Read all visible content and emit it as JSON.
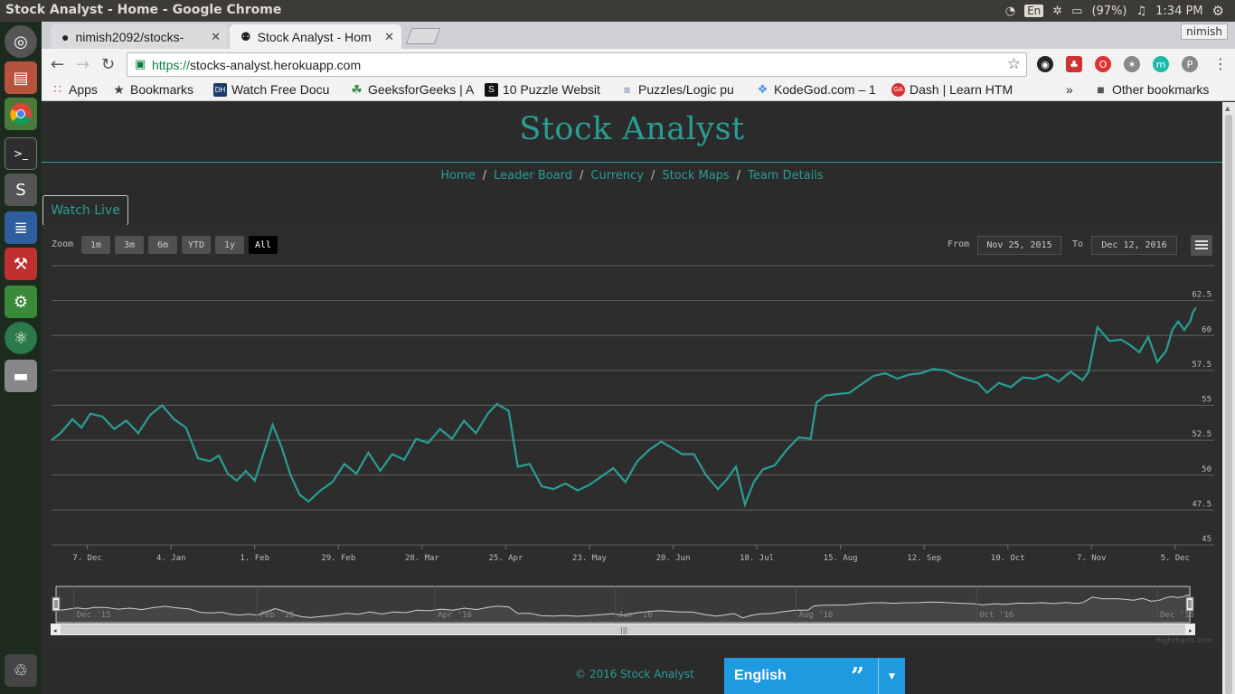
{
  "os": {
    "window_title": "Stock Analyst - Home - Google Chrome",
    "lang_indicator": "En",
    "battery": "(97%)",
    "time": "1:34 PM"
  },
  "browser": {
    "tabs": [
      {
        "label": "nimish2092/stocks-",
        "icon": "github-icon"
      },
      {
        "label": "Stock Analyst - Hom",
        "icon": "spartan-helmet-icon",
        "active": true
      }
    ],
    "profile": "nimish",
    "url_scheme": "https://",
    "url_host": "stocks-analyst.herokuapp.com",
    "bookmarks": [
      {
        "label": "Apps",
        "icon": "apps-grid-icon"
      },
      {
        "label": "Bookmarks",
        "icon": "star-icon"
      },
      {
        "label": "Watch Free Docu",
        "icon": "dh-icon",
        "color": "#1c3b6a"
      },
      {
        "label": "GeeksforGeeks | A",
        "icon": "gfg-icon",
        "color": "#2f8d46"
      },
      {
        "label": "10 Puzzle Websit",
        "icon": "s-icon",
        "color": "#111111"
      },
      {
        "label": "Puzzles/Logic pu",
        "icon": "puzzle-icon",
        "color": "#6a7fa0"
      },
      {
        "label": "KodeGod.com – 1",
        "icon": "kodegod-icon",
        "color": "#4a90e2"
      },
      {
        "label": "Dash | Learn HTM",
        "icon": "ga-icon",
        "color": "#d63131"
      }
    ],
    "bookmarks_more": "»",
    "other_bookmarks": "Other bookmarks"
  },
  "site": {
    "title": "Stock Analyst",
    "nav": [
      "Home",
      "Leader Board",
      "Currency",
      "Stock Maps",
      "Team Details"
    ],
    "nav_separator": "/",
    "watch_live": "Watch Live",
    "footer": "© 2016 Stock Analyst",
    "language": "English",
    "language_quote": "”",
    "accent_color": "#2a9d94"
  },
  "range_selector": {
    "zoom_label": "Zoom",
    "buttons": [
      "1m",
      "3m",
      "6m",
      "YTD",
      "1y",
      "All"
    ],
    "selected": "All",
    "from_label": "From",
    "from_value": "Nov 25, 2015",
    "to_label": "To",
    "to_value": "Dec 12, 2016"
  },
  "chart_data": {
    "type": "line",
    "title": "",
    "xlabel": "",
    "ylabel": "",
    "x_start": "2015-11-25",
    "x_end": "2016-12-12",
    "ylim": [
      45,
      65
    ],
    "y_ticks": [
      "45",
      "47.5",
      "50",
      "52.5",
      "55",
      "57.5",
      "60",
      "62.5"
    ],
    "x_tick_labels": [
      "7. Dec",
      "4. Jan",
      "1. Feb",
      "29. Feb",
      "28. Mar",
      "25. Apr",
      "23. May",
      "20. Jun",
      "18. Jul",
      "15. Aug",
      "12. Sep",
      "10. Oct",
      "7. Nov",
      "5. Dec"
    ],
    "x_tick_dates": [
      "2015-12-07",
      "2016-01-04",
      "2016-02-01",
      "2016-02-29",
      "2016-03-28",
      "2016-04-25",
      "2016-05-23",
      "2016-06-20",
      "2016-07-18",
      "2016-08-15",
      "2016-09-12",
      "2016-10-10",
      "2016-11-07",
      "2016-12-05"
    ],
    "grid": true,
    "line_color": "#2a9d94",
    "series": [
      {
        "points": [
          [
            "2015-11-25",
            52.5
          ],
          [
            "2015-11-28",
            53.0
          ],
          [
            "2015-12-02",
            54.0
          ],
          [
            "2015-12-05",
            53.4
          ],
          [
            "2015-12-08",
            54.4
          ],
          [
            "2015-12-12",
            54.2
          ],
          [
            "2015-12-16",
            53.3
          ],
          [
            "2015-12-20",
            53.9
          ],
          [
            "2015-12-24",
            53.0
          ],
          [
            "2015-12-28",
            54.3
          ],
          [
            "2016-01-01",
            55.0
          ],
          [
            "2016-01-05",
            54.0
          ],
          [
            "2016-01-09",
            53.4
          ],
          [
            "2016-01-13",
            51.2
          ],
          [
            "2016-01-17",
            51.0
          ],
          [
            "2016-01-20",
            51.4
          ],
          [
            "2016-01-23",
            50.1
          ],
          [
            "2016-01-26",
            49.6
          ],
          [
            "2016-01-29",
            50.3
          ],
          [
            "2016-02-01",
            49.6
          ],
          [
            "2016-02-04",
            51.6
          ],
          [
            "2016-02-07",
            53.6
          ],
          [
            "2016-02-10",
            52.0
          ],
          [
            "2016-02-13",
            50.0
          ],
          [
            "2016-02-16",
            48.6
          ],
          [
            "2016-02-19",
            48.1
          ],
          [
            "2016-02-23",
            48.9
          ],
          [
            "2016-02-27",
            49.5
          ],
          [
            "2016-03-02",
            50.8
          ],
          [
            "2016-03-06",
            50.1
          ],
          [
            "2016-03-10",
            51.6
          ],
          [
            "2016-03-14",
            50.3
          ],
          [
            "2016-03-18",
            51.5
          ],
          [
            "2016-03-22",
            51.1
          ],
          [
            "2016-03-26",
            52.6
          ],
          [
            "2016-03-30",
            52.3
          ],
          [
            "2016-04-03",
            53.3
          ],
          [
            "2016-04-07",
            52.6
          ],
          [
            "2016-04-11",
            53.9
          ],
          [
            "2016-04-15",
            53.0
          ],
          [
            "2016-04-19",
            54.4
          ],
          [
            "2016-04-22",
            55.1
          ],
          [
            "2016-04-26",
            54.6
          ],
          [
            "2016-04-29",
            50.6
          ],
          [
            "2016-05-03",
            50.8
          ],
          [
            "2016-05-07",
            49.2
          ],
          [
            "2016-05-11",
            49.0
          ],
          [
            "2016-05-15",
            49.4
          ],
          [
            "2016-05-19",
            48.9
          ],
          [
            "2016-05-23",
            49.3
          ],
          [
            "2016-05-27",
            49.9
          ],
          [
            "2016-05-31",
            50.5
          ],
          [
            "2016-06-04",
            49.5
          ],
          [
            "2016-06-08",
            51.0
          ],
          [
            "2016-06-12",
            51.8
          ],
          [
            "2016-06-16",
            52.4
          ],
          [
            "2016-06-20",
            51.9
          ],
          [
            "2016-06-23",
            51.5
          ],
          [
            "2016-06-27",
            51.5
          ],
          [
            "2016-07-01",
            50.0
          ],
          [
            "2016-07-05",
            49.0
          ],
          [
            "2016-07-08",
            49.7
          ],
          [
            "2016-07-11",
            50.6
          ],
          [
            "2016-07-14",
            47.9
          ],
          [
            "2016-07-17",
            49.5
          ],
          [
            "2016-07-20",
            50.4
          ],
          [
            "2016-07-24",
            50.7
          ],
          [
            "2016-07-28",
            51.8
          ],
          [
            "2016-08-01",
            52.7
          ],
          [
            "2016-08-05",
            52.6
          ],
          [
            "2016-08-07",
            55.2
          ],
          [
            "2016-08-10",
            55.7
          ],
          [
            "2016-08-14",
            55.8
          ],
          [
            "2016-08-18",
            55.9
          ],
          [
            "2016-08-22",
            56.5
          ],
          [
            "2016-08-26",
            57.1
          ],
          [
            "2016-08-30",
            57.3
          ],
          [
            "2016-09-03",
            56.9
          ],
          [
            "2016-09-07",
            57.2
          ],
          [
            "2016-09-11",
            57.3
          ],
          [
            "2016-09-15",
            57.6
          ],
          [
            "2016-09-19",
            57.5
          ],
          [
            "2016-09-23",
            57.1
          ],
          [
            "2016-09-27",
            56.8
          ],
          [
            "2016-09-30",
            56.6
          ],
          [
            "2016-10-03",
            55.9
          ],
          [
            "2016-10-07",
            56.6
          ],
          [
            "2016-10-11",
            56.3
          ],
          [
            "2016-10-15",
            57.0
          ],
          [
            "2016-10-19",
            56.9
          ],
          [
            "2016-10-23",
            57.2
          ],
          [
            "2016-10-27",
            56.7
          ],
          [
            "2016-10-31",
            57.4
          ],
          [
            "2016-11-04",
            56.8
          ],
          [
            "2016-11-06",
            57.4
          ],
          [
            "2016-11-09",
            60.6
          ],
          [
            "2016-11-13",
            59.6
          ],
          [
            "2016-11-17",
            59.7
          ],
          [
            "2016-11-20",
            59.3
          ],
          [
            "2016-11-23",
            58.8
          ],
          [
            "2016-11-26",
            59.9
          ],
          [
            "2016-11-29",
            58.1
          ],
          [
            "2016-12-02",
            58.9
          ],
          [
            "2016-12-04",
            60.4
          ],
          [
            "2016-12-06",
            61.0
          ],
          [
            "2016-12-08",
            60.4
          ],
          [
            "2016-12-10",
            61.0
          ],
          [
            "2016-12-11",
            61.7
          ],
          [
            "2016-12-12",
            62.0
          ]
        ]
      }
    ],
    "navigator": {
      "labels": [
        "Dec '15",
        "Feb '16",
        "Apr '16",
        "Jun '16",
        "Aug '16",
        "Oct '16",
        "Dec '16"
      ],
      "label_dates": [
        "2015-12-01",
        "2016-02-01",
        "2016-04-01",
        "2016-06-01",
        "2016-08-01",
        "2016-10-01",
        "2016-12-01"
      ]
    },
    "credits": "Highcharts.com"
  }
}
